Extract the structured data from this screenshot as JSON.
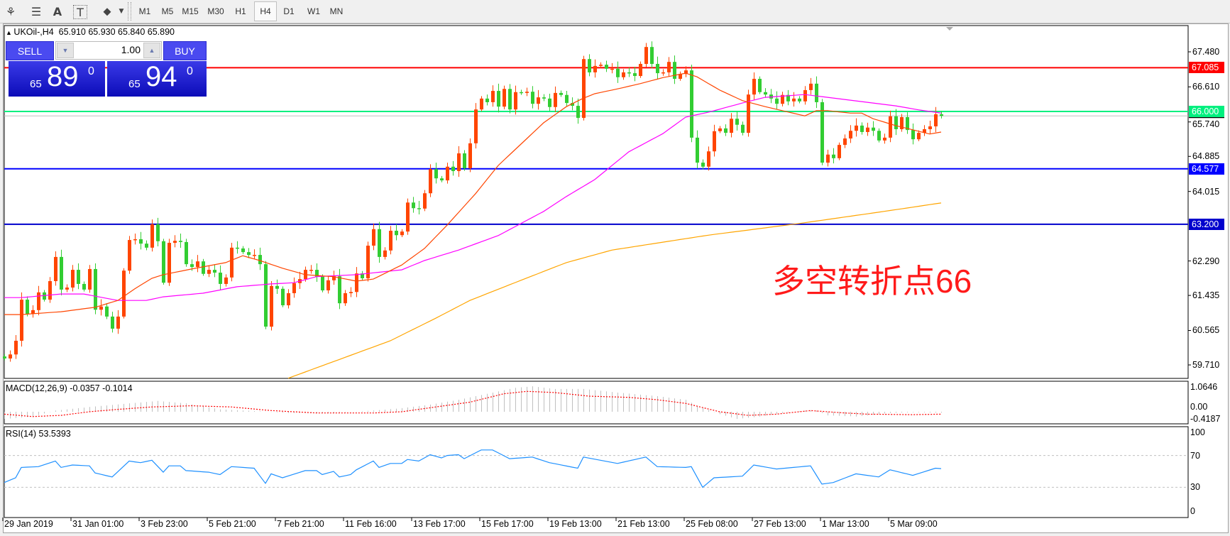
{
  "toolbar": {
    "icons": [
      "elliott-wave-icon",
      "fibonacci-fan-icon",
      "text-icon",
      "text-label-icon",
      "arrows-icon"
    ],
    "icon_glyphs": [
      "⚘",
      "☰",
      "A",
      "T",
      "⬥"
    ],
    "timeframes": [
      "M1",
      "M5",
      "M15",
      "M30",
      "H1",
      "H4",
      "D1",
      "W1",
      "MN"
    ],
    "selected_timeframe": "H4"
  },
  "chart": {
    "legend": "UKOil-,H4  65.910 65.930 65.840 65.890",
    "annotation": "多空转折点66",
    "colors": {
      "bull": "#FF4500",
      "bear": "#32CD32",
      "ma_fast": "#FF4500",
      "ma_mid": "#FF00FF",
      "ma_slow": "#FFA500",
      "macd_hist": "#C0C0C0",
      "macd_signal": "#FF0000",
      "rsi": "#1E90FF"
    }
  },
  "trade_panel": {
    "sell_label": "SELL",
    "buy_label": "BUY",
    "lot": "1.00",
    "sell_price": {
      "prefix": "65",
      "big": "89",
      "sup": "0"
    },
    "buy_price": {
      "prefix": "65",
      "big": "94",
      "sup": "0"
    }
  },
  "price_axis": {
    "ticks": [
      "67.480",
      "66.610",
      "65.740",
      "64.885",
      "64.015",
      "62.290",
      "61.435",
      "60.565",
      "59.710"
    ],
    "range": [
      59.38,
      68.11
    ]
  },
  "levels": [
    {
      "label": "67.085",
      "value": 67.085,
      "color": "#FF0000"
    },
    {
      "label": "66.000",
      "value": 66.0,
      "color": "#00F07F"
    },
    {
      "label": "64.577",
      "value": 64.577,
      "color": "#0000FF"
    },
    {
      "label": "63.200",
      "value": 63.2,
      "color": "#0000CD"
    }
  ],
  "bid_line": {
    "value": 65.89,
    "color": "#C0C0C0"
  },
  "macd": {
    "legend": "MACD(12,26,9) -0.0357 -0.1014",
    "axis": [
      "1.0646",
      "0.00",
      "-0.4187"
    ],
    "main": [
      [
        0,
        -0.3
      ],
      [
        5,
        -0.2
      ],
      [
        9,
        0.05
      ],
      [
        15,
        0.2
      ],
      [
        22,
        0.35
      ],
      [
        27,
        0.45
      ],
      [
        32,
        0.35
      ],
      [
        38,
        0.1
      ],
      [
        45,
        0.02
      ],
      [
        50,
        -0.05
      ],
      [
        58,
        -0.05
      ],
      [
        65,
        0.05
      ],
      [
        70,
        0.15
      ],
      [
        75,
        0.3
      ],
      [
        80,
        0.5
      ],
      [
        86,
        0.8
      ],
      [
        90,
        1.0
      ],
      [
        93,
        1.06
      ],
      [
        97,
        0.95
      ],
      [
        102,
        0.95
      ],
      [
        108,
        0.8
      ],
      [
        115,
        0.65
      ],
      [
        120,
        0.5
      ],
      [
        122,
        0.25
      ],
      [
        126,
        -0.1
      ],
      [
        129,
        -0.3
      ],
      [
        133,
        -0.2
      ],
      [
        137,
        -0.05
      ],
      [
        141,
        0.05
      ],
      [
        143,
        0.05
      ],
      [
        145,
        -0.15
      ],
      [
        150,
        -0.2
      ],
      [
        156,
        -0.05
      ],
      [
        160,
        -0.02
      ],
      [
        165,
        -0.036
      ]
    ],
    "signal": [
      [
        0,
        -0.1
      ],
      [
        5,
        -0.2
      ],
      [
        10,
        -0.15
      ],
      [
        15,
        0.0
      ],
      [
        20,
        0.1
      ],
      [
        26,
        0.2
      ],
      [
        33,
        0.25
      ],
      [
        40,
        0.2
      ],
      [
        47,
        0.05
      ],
      [
        55,
        -0.05
      ],
      [
        65,
        -0.05
      ],
      [
        70,
        0.0
      ],
      [
        76,
        0.2
      ],
      [
        82,
        0.4
      ],
      [
        88,
        0.75
      ],
      [
        92,
        0.85
      ],
      [
        97,
        0.8
      ],
      [
        103,
        0.65
      ],
      [
        110,
        0.6
      ],
      [
        115,
        0.5
      ],
      [
        120,
        0.35
      ],
      [
        126,
        0.0
      ],
      [
        131,
        -0.15
      ],
      [
        136,
        -0.1
      ],
      [
        142,
        0.05
      ],
      [
        148,
        -0.05
      ],
      [
        152,
        -0.1
      ],
      [
        160,
        -0.12
      ],
      [
        165,
        -0.101
      ]
    ]
  },
  "rsi": {
    "legend": "RSI(14) 53.5393",
    "axis": [
      "100",
      "70",
      "30",
      "0"
    ],
    "values": [
      [
        0,
        36
      ],
      [
        2,
        42
      ],
      [
        3,
        55
      ],
      [
        6,
        56
      ],
      [
        9,
        63
      ],
      [
        10,
        55
      ],
      [
        12,
        58
      ],
      [
        15,
        57
      ],
      [
        16,
        48
      ],
      [
        19,
        43
      ],
      [
        22,
        63
      ],
      [
        24,
        61
      ],
      [
        26,
        64
      ],
      [
        28,
        49
      ],
      [
        29,
        57
      ],
      [
        31,
        57
      ],
      [
        32,
        51
      ],
      [
        36,
        49
      ],
      [
        38,
        46
      ],
      [
        40,
        56
      ],
      [
        44,
        54
      ],
      [
        46,
        35
      ],
      [
        47,
        47
      ],
      [
        49,
        42
      ],
      [
        53,
        51
      ],
      [
        55,
        51
      ],
      [
        56,
        46
      ],
      [
        58,
        50
      ],
      [
        59,
        43
      ],
      [
        61,
        46
      ],
      [
        62,
        52
      ],
      [
        65,
        63
      ],
      [
        66,
        55
      ],
      [
        68,
        60
      ],
      [
        70,
        60
      ],
      [
        71,
        65
      ],
      [
        73,
        63
      ],
      [
        75,
        71
      ],
      [
        77,
        67
      ],
      [
        78,
        70
      ],
      [
        80,
        71
      ],
      [
        81,
        66
      ],
      [
        84,
        77
      ],
      [
        86,
        77
      ],
      [
        89,
        66
      ],
      [
        93,
        68
      ],
      [
        96,
        61
      ],
      [
        101,
        54
      ],
      [
        102,
        68
      ],
      [
        108,
        60
      ],
      [
        113,
        68
      ],
      [
        115,
        56
      ],
      [
        120,
        55
      ],
      [
        121,
        56
      ],
      [
        123,
        30
      ],
      [
        125,
        42
      ],
      [
        130,
        44
      ],
      [
        132,
        58
      ],
      [
        136,
        53
      ],
      [
        142,
        57
      ],
      [
        144,
        34
      ],
      [
        146,
        36
      ],
      [
        150,
        47
      ],
      [
        154,
        43
      ],
      [
        156,
        52
      ],
      [
        160,
        45
      ],
      [
        164,
        54
      ],
      [
        165,
        53.5
      ]
    ]
  },
  "time_axis": [
    "29 Jan 2019",
    "31 Jan 01:00",
    "3 Feb 23:00",
    "5 Feb 21:00",
    "7 Feb 21:00",
    "11 Feb 16:00",
    "13 Feb 17:00",
    "15 Feb 17:00",
    "19 Feb 13:00",
    "21 Feb 13:00",
    "25 Feb 08:00",
    "27 Feb 13:00",
    "1 Mar 13:00",
    "5 Mar 09:00"
  ],
  "chart_data": {
    "type": "candlestick",
    "first_open": 59.92,
    "closes": [
      59.87,
      59.97,
      60.31,
      61.33,
      60.98,
      61.07,
      61.51,
      61.33,
      61.79,
      62.39,
      61.58,
      61.63,
      62.07,
      61.72,
      61.58,
      62.09,
      61.08,
      61.16,
      60.91,
      60.61,
      60.91,
      62.05,
      62.81,
      62.83,
      62.72,
      62.62,
      63.2,
      62.78,
      61.75,
      62.74,
      62.79,
      62.76,
      62.21,
      62.14,
      62.28,
      61.97,
      62.07,
      62.0,
      61.72,
      61.88,
      62.62,
      62.6,
      62.51,
      62.44,
      62.44,
      62.21,
      60.66,
      61.67,
      61.6,
      61.19,
      61.49,
      61.74,
      61.84,
      62.07,
      62.07,
      61.9,
      61.56,
      61.81,
      61.91,
      61.24,
      61.49,
      61.52,
      61.98,
      61.86,
      62.67,
      63.08,
      62.39,
      62.55,
      63.04,
      62.93,
      63.02,
      63.74,
      63.6,
      63.59,
      63.97,
      64.57,
      64.34,
      64.29,
      64.63,
      64.52,
      64.96,
      64.59,
      65.21,
      66.05,
      66.32,
      66.23,
      66.51,
      66.12,
      66.56,
      66.05,
      66.48,
      66.46,
      66.49,
      66.19,
      66.35,
      66.32,
      66.11,
      66.46,
      66.41,
      66.21,
      66.14,
      65.84,
      67.3,
      66.97,
      67.13,
      67.16,
      67.06,
      67.06,
      66.85,
      66.97,
      66.95,
      66.88,
      67.18,
      67.6,
      67.18,
      66.95,
      66.97,
      67.23,
      66.81,
      66.93,
      67.02,
      65.35,
      64.73,
      64.63,
      65.01,
      65.51,
      65.58,
      65.47,
      65.82,
      65.67,
      65.47,
      66.42,
      66.81,
      66.48,
      66.42,
      66.32,
      66.19,
      66.41,
      66.25,
      66.32,
      66.25,
      66.53,
      66.69,
      66.23,
      64.73,
      64.93,
      64.84,
      65.17,
      65.33,
      65.52,
      65.65,
      65.49,
      65.6,
      65.52,
      65.28,
      65.35,
      65.88,
      65.56,
      65.86,
      65.54,
      65.31,
      65.47,
      65.56,
      65.63,
      65.93,
      65.89
    ],
    "ma_fast": [
      [
        0,
        60.96
      ],
      [
        3,
        60.96
      ],
      [
        10,
        61.03
      ],
      [
        16,
        61.14
      ],
      [
        20,
        61.31
      ],
      [
        23,
        61.6
      ],
      [
        26,
        61.86
      ],
      [
        28,
        61.95
      ],
      [
        33,
        62.09
      ],
      [
        39,
        62.25
      ],
      [
        42,
        62.42
      ],
      [
        45,
        62.3
      ],
      [
        49,
        62.11
      ],
      [
        53,
        61.95
      ],
      [
        58,
        61.9
      ],
      [
        62,
        61.79
      ],
      [
        65,
        61.84
      ],
      [
        70,
        62.19
      ],
      [
        74,
        62.6
      ],
      [
        78,
        63.18
      ],
      [
        83,
        63.96
      ],
      [
        87,
        64.66
      ],
      [
        91,
        65.19
      ],
      [
        95,
        65.72
      ],
      [
        99,
        66.12
      ],
      [
        102,
        66.33
      ],
      [
        104,
        66.44
      ],
      [
        108,
        66.56
      ],
      [
        112,
        66.69
      ],
      [
        116,
        66.84
      ],
      [
        120,
        66.95
      ],
      [
        122,
        66.86
      ],
      [
        126,
        66.53
      ],
      [
        130,
        66.27
      ],
      [
        134,
        66.12
      ],
      [
        141,
        65.89
      ],
      [
        143,
        66.02
      ],
      [
        145,
        66.02
      ],
      [
        149,
        65.96
      ],
      [
        151,
        65.96
      ],
      [
        153,
        65.82
      ],
      [
        157,
        65.65
      ],
      [
        161,
        65.51
      ],
      [
        163,
        65.44
      ],
      [
        165,
        65.49
      ]
    ],
    "ma_mid": [
      [
        0,
        61.38
      ],
      [
        3,
        61.38
      ],
      [
        10,
        61.47
      ],
      [
        14,
        61.47
      ],
      [
        20,
        61.31
      ],
      [
        25,
        61.31
      ],
      [
        28,
        61.4
      ],
      [
        35,
        61.49
      ],
      [
        41,
        61.65
      ],
      [
        47,
        61.72
      ],
      [
        51,
        61.75
      ],
      [
        55,
        61.9
      ],
      [
        62,
        61.95
      ],
      [
        70,
        62.07
      ],
      [
        74,
        62.3
      ],
      [
        80,
        62.56
      ],
      [
        87,
        62.92
      ],
      [
        95,
        63.52
      ],
      [
        99,
        63.89
      ],
      [
        104,
        64.31
      ],
      [
        110,
        65.0
      ],
      [
        116,
        65.45
      ],
      [
        120,
        65.86
      ],
      [
        124,
        65.98
      ],
      [
        130,
        66.21
      ],
      [
        134,
        66.35
      ],
      [
        141,
        66.42
      ],
      [
        145,
        66.35
      ],
      [
        149,
        66.28
      ],
      [
        153,
        66.21
      ],
      [
        157,
        66.14
      ],
      [
        161,
        66.04
      ],
      [
        165,
        65.96
      ]
    ],
    "ma_slow": [
      [
        50,
        59.38
      ],
      [
        68,
        60.31
      ],
      [
        76,
        60.87
      ],
      [
        82,
        61.31
      ],
      [
        91,
        61.81
      ],
      [
        99,
        62.25
      ],
      [
        107,
        62.56
      ],
      [
        124,
        62.93
      ],
      [
        140,
        63.22
      ],
      [
        154,
        63.5
      ],
      [
        165,
        63.73
      ]
    ]
  }
}
